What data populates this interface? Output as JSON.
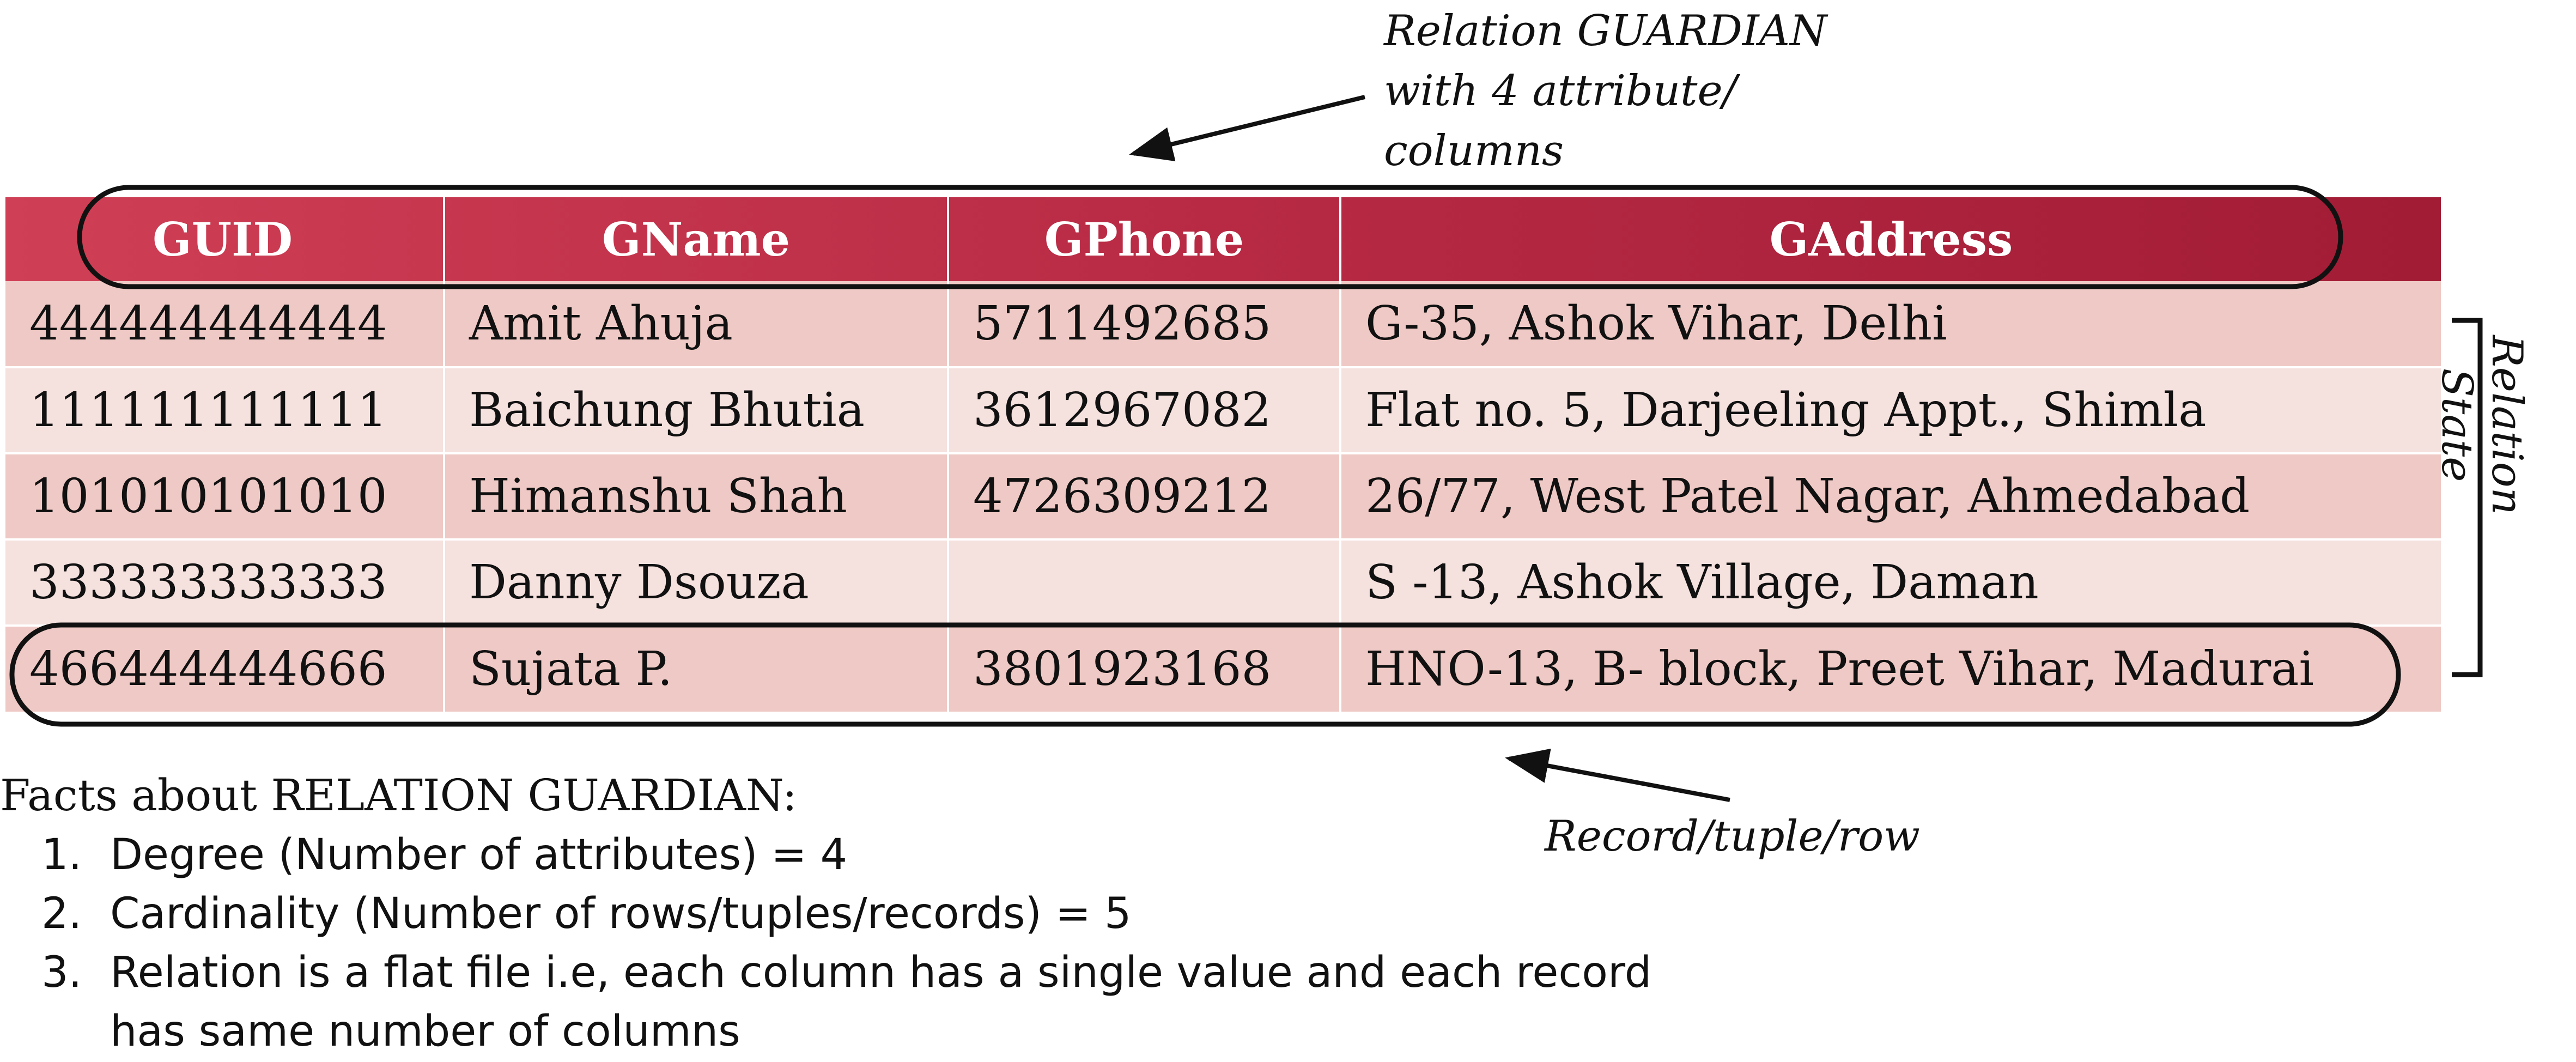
{
  "callouts": {
    "attributes": "Relation GUARDIAN\nwith 4 attribute/\ncolumns",
    "record": "Record/tuple/row",
    "state": "Relation\nState"
  },
  "table": {
    "columns": [
      "GUID",
      "GName",
      "GPhone",
      "GAddress"
    ],
    "rows": [
      [
        "444444444444",
        "Amit Ahuja",
        "5711492685",
        "G-35, Ashok Vihar, Delhi"
      ],
      [
        "111111111111",
        "Baichung Bhutia",
        "3612967082",
        "Flat no. 5, Darjeeling Appt., Shimla"
      ],
      [
        "101010101010",
        "Himanshu Shah",
        "4726309212",
        "26/77, West Patel Nagar, Ahmedabad"
      ],
      [
        "333333333333",
        "Danny Dsouza",
        "",
        "S -13, Ashok Village, Daman"
      ],
      [
        "466444444666",
        "Sujata P.",
        "3801923168",
        "HNO-13, B- block, Preet Vihar, Madurai"
      ]
    ]
  },
  "facts": {
    "heading": "Facts about RELATION GUARDIAN:",
    "items": [
      {
        "num": "1.",
        "text": "Degree (Number of attributes) = 4"
      },
      {
        "num": "2.",
        "text": "Cardinality (Number of rows/tuples/records) = 5"
      },
      {
        "num": "3.",
        "text": "Relation is a flat file i.e, each column has a single value and each record\nhas same number of columns"
      }
    ]
  },
  "colors": {
    "header_gradient": [
      "#cf3f55",
      "#a21c36"
    ],
    "row_dark": "#efc9c5",
    "row_light": "#f5e1de",
    "outline": "#111111"
  }
}
